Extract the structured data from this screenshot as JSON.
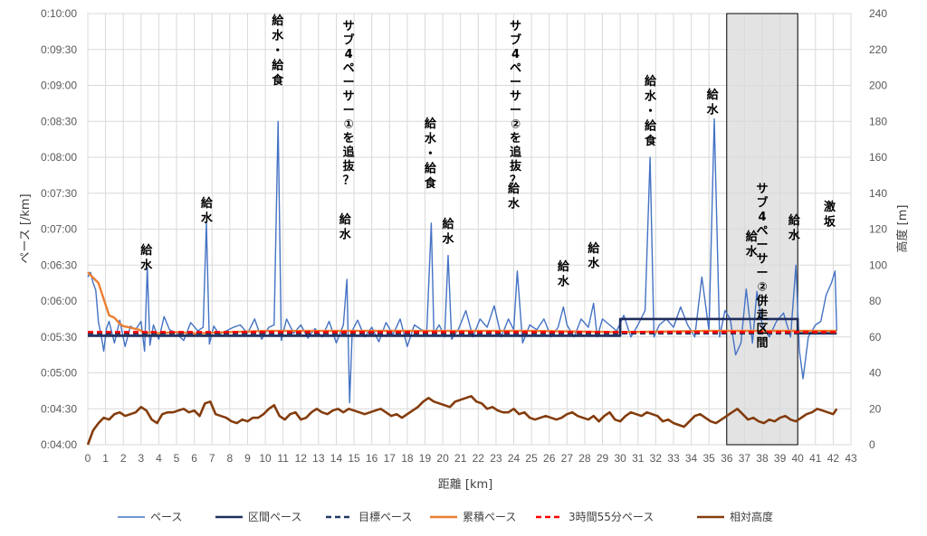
{
  "chart_data": {
    "type": "line",
    "xlabel": "距離 [km]",
    "ylabel": "ペース [/km]",
    "y2label": "高度 [m]",
    "xlim": [
      0,
      43
    ],
    "ylim_seconds": [
      240,
      600
    ],
    "y2lim": [
      0,
      240
    ],
    "x_ticks": [
      "0",
      "1",
      "2",
      "3",
      "4",
      "5",
      "6",
      "7",
      "8",
      "9",
      "10",
      "11",
      "12",
      "13",
      "14",
      "15",
      "16",
      "17",
      "18",
      "19",
      "20",
      "21",
      "22",
      "23",
      "24",
      "25",
      "26",
      "27",
      "28",
      "29",
      "30",
      "31",
      "32",
      "33",
      "34",
      "35",
      "36",
      "37",
      "38",
      "39",
      "40",
      "41",
      "42",
      "43"
    ],
    "y_ticks": [
      "0:04:00",
      "0:04:30",
      "0:05:00",
      "0:05:30",
      "0:06:00",
      "0:06:30",
      "0:07:00",
      "0:07:30",
      "0:08:00",
      "0:08:30",
      "0:09:00",
      "0:09:30",
      "0:10:00"
    ],
    "y2_ticks": [
      "0",
      "20",
      "40",
      "60",
      "80",
      "100",
      "120",
      "140",
      "160",
      "180",
      "200",
      "220",
      "240"
    ],
    "grid": true,
    "legend_position": "bottom",
    "series": [
      {
        "name": "ペース",
        "color": "#4472c4",
        "x": [
          0,
          0.15,
          0.3,
          0.45,
          0.6,
          0.75,
          0.9,
          1.05,
          1.2,
          1.5,
          1.8,
          2.1,
          2.4,
          2.7,
          3.0,
          3.2,
          3.35,
          3.5,
          3.7,
          4.0,
          4.3,
          4.6,
          5.0,
          5.4,
          5.8,
          6.2,
          6.5,
          6.68,
          6.85,
          7.1,
          7.4,
          7.8,
          8.2,
          8.6,
          9.0,
          9.4,
          9.8,
          10.2,
          10.5,
          10.72,
          10.9,
          11.2,
          11.6,
          12.0,
          12.4,
          12.8,
          13.2,
          13.6,
          14.0,
          14.4,
          14.6,
          14.75,
          14.9,
          15.2,
          15.6,
          16.0,
          16.4,
          16.8,
          17.2,
          17.6,
          18.0,
          18.4,
          18.8,
          19.1,
          19.35,
          19.5,
          19.8,
          20.1,
          20.3,
          20.5,
          20.9,
          21.3,
          21.7,
          22.1,
          22.5,
          22.9,
          23.3,
          23.7,
          24.0,
          24.2,
          24.5,
          24.9,
          25.3,
          25.7,
          26.1,
          26.5,
          26.8,
          27.0,
          27.4,
          27.8,
          28.2,
          28.5,
          28.7,
          29.0,
          29.4,
          29.8,
          30.2,
          30.6,
          31.0,
          31.4,
          31.68,
          31.9,
          32.2,
          32.6,
          33.0,
          33.4,
          33.8,
          34.2,
          34.6,
          35.0,
          35.3,
          35.6,
          35.9,
          36.2,
          36.5,
          36.8,
          37.1,
          37.45,
          37.7,
          38.0,
          38.4,
          38.8,
          39.2,
          39.6,
          39.9,
          40.1,
          40.3,
          40.6,
          41.0,
          41.3,
          41.6,
          41.9,
          42.1,
          42.2
        ],
        "y_seconds": [
          380,
          384,
          375,
          369,
          342,
          332,
          318,
          337,
          343,
          325,
          344,
          322,
          339,
          336,
          343,
          318,
          388,
          323,
          340,
          328,
          347,
          336,
          333,
          327,
          342,
          335,
          338,
          425,
          324,
          339,
          332,
          335,
          338,
          340,
          333,
          345,
          328,
          338,
          340,
          510,
          327,
          345,
          333,
          340,
          329,
          337,
          330,
          343,
          325,
          340,
          378,
          275,
          335,
          344,
          330,
          338,
          326,
          342,
          332,
          345,
          322,
          340,
          336,
          334,
          425,
          333,
          340,
          330,
          398,
          328,
          337,
          352,
          330,
          345,
          338,
          356,
          330,
          345,
          336,
          385,
          325,
          340,
          336,
          345,
          330,
          338,
          355,
          340,
          330,
          345,
          338,
          358,
          330,
          345,
          340,
          335,
          348,
          330,
          340,
          352,
          480,
          330,
          340,
          345,
          338,
          355,
          340,
          330,
          380,
          335,
          512,
          330,
          352,
          345,
          315,
          325,
          370,
          325,
          368,
          340,
          330,
          343,
          350,
          330,
          390,
          318,
          295,
          330,
          340,
          343,
          365,
          375,
          385,
          335
        ]
      },
      {
        "name": "区間ペース",
        "color": "#1f2d5c",
        "x": [
          0,
          30,
          30,
          40,
          40,
          42.2
        ],
        "y_seconds": [
          331,
          331,
          345,
          345,
          333,
          333
        ]
      },
      {
        "name": "目標ペース",
        "color": "#203864",
        "x": [
          0,
          42.2
        ],
        "y_seconds": [
          333,
          333
        ]
      },
      {
        "name": "累積ペース",
        "color": "#ed7d31",
        "x": [
          0,
          0.2,
          0.4,
          0.6,
          0.8,
          1.0,
          1.2,
          1.5,
          1.8,
          2.0,
          2.3,
          2.6,
          2.9,
          3.2,
          3.6,
          4.0,
          5.0,
          6.0,
          8.0,
          10.0,
          15.0,
          20.0,
          25.0,
          30.0,
          35.0,
          40.0,
          42.2
        ],
        "y_seconds": [
          384,
          381,
          378,
          375,
          366,
          357,
          348,
          346,
          341,
          339,
          338,
          337,
          336,
          333,
          334,
          333,
          334,
          333,
          334,
          335,
          335,
          335,
          335,
          334,
          335,
          335,
          335
        ]
      },
      {
        "name": "3時間55分ペース",
        "color": "#ff0000",
        "x": [
          0,
          42.2
        ],
        "y_seconds": [
          334,
          334
        ]
      },
      {
        "name": "相対高度",
        "color": "#843c0c",
        "axis": "right",
        "x": [
          0,
          0.3,
          0.6,
          0.9,
          1.2,
          1.5,
          1.8,
          2.1,
          2.4,
          2.7,
          3.0,
          3.3,
          3.6,
          3.9,
          4.2,
          4.5,
          4.8,
          5.1,
          5.4,
          5.7,
          6.0,
          6.3,
          6.6,
          6.9,
          7.2,
          7.5,
          7.8,
          8.1,
          8.4,
          8.7,
          9.0,
          9.3,
          9.6,
          9.9,
          10.2,
          10.5,
          10.8,
          11.1,
          11.4,
          11.7,
          12.0,
          12.3,
          12.6,
          12.9,
          13.2,
          13.5,
          13.8,
          14.1,
          14.4,
          14.7,
          15.0,
          15.3,
          15.6,
          15.9,
          16.2,
          16.5,
          16.8,
          17.1,
          17.4,
          17.7,
          18.0,
          18.3,
          18.6,
          18.9,
          19.2,
          19.5,
          19.8,
          20.1,
          20.4,
          20.7,
          21.0,
          21.3,
          21.6,
          21.9,
          22.2,
          22.5,
          22.8,
          23.1,
          23.4,
          23.7,
          24.0,
          24.3,
          24.6,
          24.9,
          25.2,
          25.5,
          25.8,
          26.1,
          26.4,
          26.7,
          27.0,
          27.3,
          27.6,
          27.9,
          28.2,
          28.5,
          28.8,
          29.1,
          29.4,
          29.7,
          30.0,
          30.3,
          30.6,
          30.9,
          31.2,
          31.5,
          31.8,
          32.1,
          32.4,
          32.7,
          33.0,
          33.3,
          33.6,
          33.9,
          34.2,
          34.5,
          34.8,
          35.1,
          35.4,
          35.7,
          36.0,
          36.3,
          36.6,
          36.9,
          37.2,
          37.5,
          37.8,
          38.1,
          38.4,
          38.7,
          39.0,
          39.3,
          39.6,
          39.9,
          40.2,
          40.5,
          40.8,
          41.1,
          41.4,
          41.7,
          42.0,
          42.2
        ],
        "y": [
          0,
          8,
          12,
          15,
          14,
          17,
          18,
          16,
          17,
          18,
          21,
          19,
          14,
          12,
          17,
          18,
          18,
          19,
          20,
          18,
          19,
          16,
          23,
          24,
          17,
          16,
          15,
          13,
          12,
          14,
          13,
          15,
          15,
          17,
          20,
          22,
          16,
          14,
          17,
          18,
          14,
          15,
          18,
          20,
          18,
          17,
          19,
          20,
          18,
          20,
          19,
          18,
          17,
          18,
          19,
          20,
          18,
          16,
          17,
          15,
          17,
          19,
          21,
          24,
          26,
          24,
          23,
          22,
          21,
          24,
          25,
          26,
          27,
          24,
          23,
          20,
          21,
          19,
          18,
          18,
          20,
          17,
          18,
          15,
          14,
          15,
          16,
          15,
          14,
          15,
          17,
          18,
          16,
          15,
          14,
          16,
          13,
          16,
          18,
          14,
          13,
          16,
          18,
          17,
          16,
          18,
          17,
          16,
          13,
          14,
          12,
          11,
          10,
          13,
          16,
          17,
          15,
          13,
          12,
          14,
          16,
          18,
          20,
          17,
          14,
          15,
          13,
          12,
          14,
          13,
          15,
          16,
          14,
          13,
          15,
          17,
          18,
          20,
          19,
          18,
          17,
          20
        ]
      }
    ],
    "annotations": [
      {
        "text": "給水",
        "x": 3.3
      },
      {
        "text": "給水",
        "x": 6.7
      },
      {
        "text": "給水・給食",
        "x": 10.7
      },
      {
        "text": "サブ4ペーサー①を追抜？",
        "x": 14.7
      },
      {
        "text": "給水",
        "x": 14.5
      },
      {
        "text": "給水・給食",
        "x": 19.3
      },
      {
        "text": "給水",
        "x": 20.3
      },
      {
        "text": "サブ4ペーサー②を追抜？",
        "x": 24.1
      },
      {
        "text": "給水",
        "x": 24.0
      },
      {
        "text": "給水",
        "x": 26.8
      },
      {
        "text": "給水",
        "x": 28.5
      },
      {
        "text": "給水・給食",
        "x": 31.7
      },
      {
        "text": "給水",
        "x": 35.2
      },
      {
        "text": "サブ4ペーサー②併走区間",
        "x": 38.0
      },
      {
        "text": "給水",
        "x": 37.4
      },
      {
        "text": "給水",
        "x": 39.8
      },
      {
        "text": "激坂",
        "x": 41.8
      }
    ],
    "highlight_range": {
      "x": [
        36,
        40
      ],
      "label": "サブ4ペーサー②併走区間"
    }
  }
}
